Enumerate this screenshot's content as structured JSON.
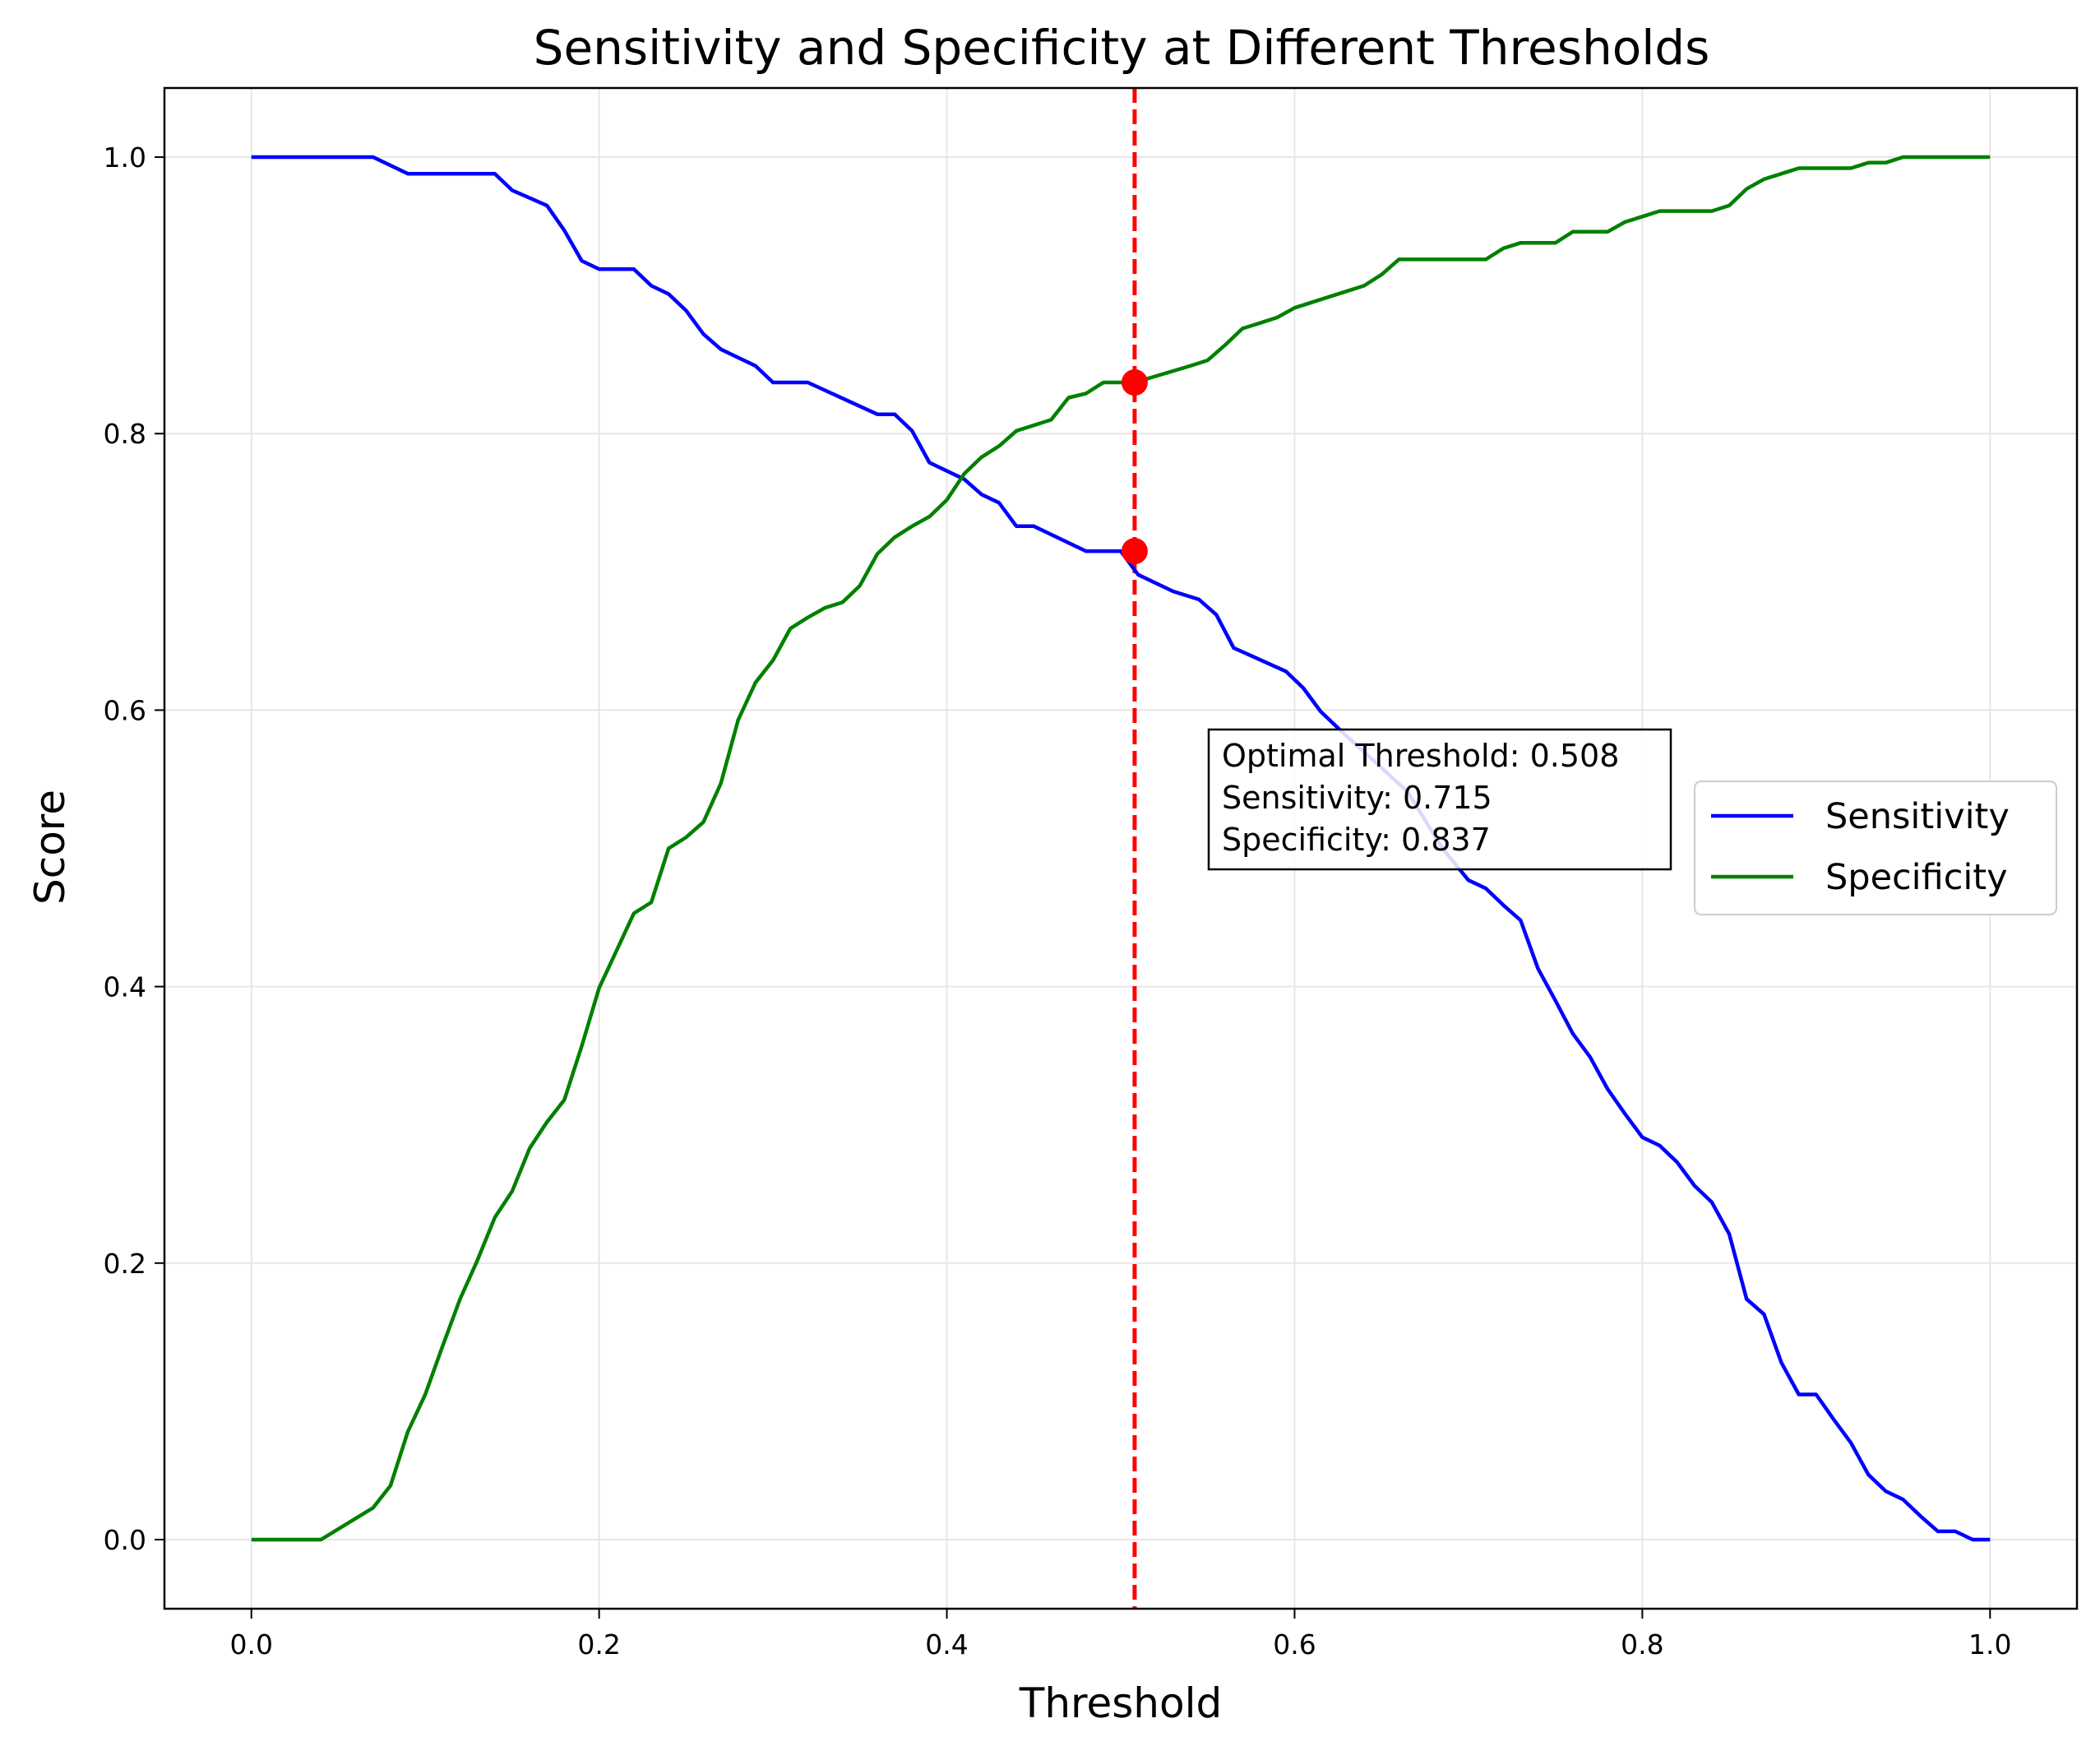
{
  "chart_data": {
    "type": "line",
    "title": "Sensitivity and Specificity at Different Thresholds",
    "xlabel": "Threshold",
    "ylabel": "Score",
    "xlim": [
      -0.05,
      1.05
    ],
    "ylim": [
      -0.05,
      1.05
    ],
    "xticks": [
      "0.0",
      "0.2",
      "0.4",
      "0.6",
      "0.8",
      "1.0"
    ],
    "yticks": [
      "0.0",
      "0.2",
      "0.4",
      "0.6",
      "0.8",
      "1.0"
    ],
    "grid": true,
    "legend_position": "center-right",
    "series": [
      {
        "name": "Sensitivity",
        "color": "#0000ff",
        "x": [
          0.0,
          0.07,
          0.09,
          0.14,
          0.15,
          0.17,
          0.18,
          0.19,
          0.2,
          0.22,
          0.23,
          0.24,
          0.25,
          0.26,
          0.27,
          0.29,
          0.3,
          0.32,
          0.36,
          0.37,
          0.38,
          0.39,
          0.41,
          0.42,
          0.43,
          0.44,
          0.45,
          0.48,
          0.5,
          0.51,
          0.53,
          0.545,
          0.555,
          0.565,
          0.595,
          0.605,
          0.615,
          0.63,
          0.645,
          0.665,
          0.685,
          0.7,
          0.71,
          0.72,
          0.73,
          0.74,
          0.75,
          0.76,
          0.77,
          0.78,
          0.79,
          0.8,
          0.81,
          0.82,
          0.83,
          0.84,
          0.85,
          0.86,
          0.87,
          0.88,
          0.89,
          0.9,
          0.91,
          0.92,
          0.93,
          0.94,
          0.95,
          0.96,
          0.97,
          0.98,
          0.99,
          1.0
        ],
        "values": [
          1.0,
          1.0,
          0.988,
          0.988,
          0.976,
          0.965,
          0.947,
          0.925,
          0.919,
          0.919,
          0.907,
          0.901,
          0.889,
          0.872,
          0.861,
          0.849,
          0.837,
          0.837,
          0.814,
          0.814,
          0.802,
          0.779,
          0.767,
          0.756,
          0.75,
          0.733,
          0.733,
          0.715,
          0.715,
          0.698,
          0.686,
          0.68,
          0.669,
          0.645,
          0.628,
          0.616,
          0.599,
          0.581,
          0.564,
          0.541,
          0.5,
          0.477,
          0.471,
          0.459,
          0.448,
          0.413,
          0.39,
          0.366,
          0.349,
          0.326,
          0.308,
          0.291,
          0.285,
          0.273,
          0.256,
          0.244,
          0.221,
          0.174,
          0.163,
          0.128,
          0.105,
          0.105,
          0.087,
          0.07,
          0.047,
          0.035,
          0.029,
          0.017,
          0.006,
          0.006,
          0.0,
          0.0
        ]
      },
      {
        "name": "Specificity",
        "color": "#008000",
        "x": [
          0.0,
          0.04,
          0.07,
          0.08,
          0.09,
          0.1,
          0.11,
          0.12,
          0.13,
          0.14,
          0.15,
          0.16,
          0.17,
          0.18,
          0.19,
          0.2,
          0.21,
          0.22,
          0.23,
          0.24,
          0.25,
          0.26,
          0.27,
          0.28,
          0.29,
          0.3,
          0.31,
          0.32,
          0.33,
          0.34,
          0.35,
          0.36,
          0.37,
          0.38,
          0.39,
          0.4,
          0.41,
          0.42,
          0.43,
          0.44,
          0.45,
          0.46,
          0.47,
          0.48,
          0.49,
          0.5,
          0.508,
          0.54,
          0.55,
          0.56,
          0.57,
          0.58,
          0.59,
          0.6,
          0.62,
          0.64,
          0.65,
          0.66,
          0.67,
          0.7,
          0.71,
          0.72,
          0.73,
          0.74,
          0.75,
          0.76,
          0.77,
          0.78,
          0.79,
          0.8,
          0.81,
          0.82,
          0.83,
          0.84,
          0.85,
          0.86,
          0.87,
          0.88,
          0.89,
          0.9,
          0.91,
          0.92,
          0.93,
          0.94,
          0.95,
          0.96,
          1.0
        ],
        "values": [
          0.0,
          0.0,
          0.023,
          0.039,
          0.078,
          0.105,
          0.14,
          0.174,
          0.202,
          0.233,
          0.252,
          0.283,
          0.302,
          0.318,
          0.357,
          0.399,
          0.426,
          0.453,
          0.461,
          0.5,
          0.508,
          0.519,
          0.547,
          0.593,
          0.62,
          0.636,
          0.659,
          0.667,
          0.674,
          0.678,
          0.69,
          0.713,
          0.725,
          0.733,
          0.74,
          0.752,
          0.771,
          0.783,
          0.791,
          0.802,
          0.806,
          0.81,
          0.826,
          0.829,
          0.837,
          0.837,
          0.837,
          0.849,
          0.853,
          0.864,
          0.876,
          0.88,
          0.884,
          0.891,
          0.899,
          0.907,
          0.915,
          0.926,
          0.926,
          0.926,
          0.926,
          0.934,
          0.938,
          0.938,
          0.938,
          0.946,
          0.946,
          0.946,
          0.953,
          0.957,
          0.961,
          0.961,
          0.961,
          0.961,
          0.965,
          0.977,
          0.984,
          0.988,
          0.992,
          0.992,
          0.992,
          0.992,
          0.996,
          0.996,
          1.0,
          1.0,
          1.0
        ]
      }
    ],
    "threshold_line": {
      "x": 0.508,
      "color": "#ff0000",
      "style": "dashed"
    },
    "markers": [
      {
        "x": 0.508,
        "y": 0.837,
        "color": "#ff0000"
      },
      {
        "x": 0.508,
        "y": 0.715,
        "color": "#ff0000"
      }
    ],
    "annotation": {
      "lines": [
        "Optimal Threshold: 0.508",
        "Sensitivity: 0.715",
        "Specificity: 0.837"
      ],
      "x": 0.555,
      "y": 0.55
    }
  }
}
